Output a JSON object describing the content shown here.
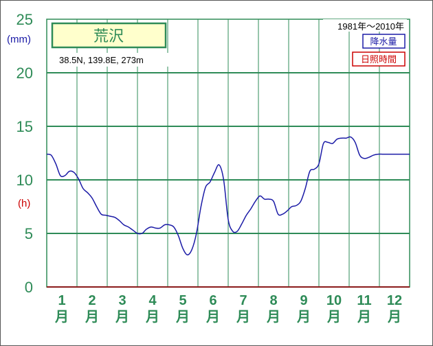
{
  "chart_data": {
    "type": "line",
    "station": "荒沢",
    "location_text": "38.5N,  139.8E,  273m",
    "period_text": "1981年〜2010年",
    "legend": {
      "precip": "降水量",
      "sunshine": "日照時間"
    },
    "units": {
      "left_top": "(mm)",
      "left_mid": "(h)"
    },
    "y_tick_labels": [
      "0",
      "5",
      "10",
      "15",
      "20",
      "25"
    ],
    "ylim": [
      0,
      25
    ],
    "x_ticks": [
      {
        "num": "1",
        "unit": "月"
      },
      {
        "num": "2",
        "unit": "月"
      },
      {
        "num": "3",
        "unit": "月"
      },
      {
        "num": "4",
        "unit": "月"
      },
      {
        "num": "5",
        "unit": "月"
      },
      {
        "num": "6",
        "unit": "月"
      },
      {
        "num": "7",
        "unit": "月"
      },
      {
        "num": "8",
        "unit": "月"
      },
      {
        "num": "9",
        "unit": "月"
      },
      {
        "num": "10",
        "unit": "月"
      },
      {
        "num": "11",
        "unit": "月"
      },
      {
        "num": "12",
        "unit": "月"
      }
    ],
    "xlim": [
      0.5,
      12.5
    ],
    "series": [
      {
        "color": "#1a1aa6",
        "x": [
          0.5,
          0.65,
          0.8,
          0.95,
          1.1,
          1.25,
          1.4,
          1.55,
          1.7,
          1.85,
          2.0,
          2.15,
          2.3,
          2.45,
          2.6,
          2.75,
          2.9,
          3.05,
          3.2,
          3.35,
          3.5,
          3.65,
          3.8,
          3.95,
          4.1,
          4.25,
          4.4,
          4.55,
          4.7,
          4.85,
          5.0,
          5.15,
          5.3,
          5.45,
          5.6,
          5.75,
          5.9,
          6.05,
          6.2,
          6.35,
          6.5,
          6.65,
          6.8,
          6.95,
          7.1,
          7.25,
          7.4,
          7.55,
          7.7,
          7.85,
          8.0,
          8.15,
          8.3,
          8.45,
          8.6,
          8.75,
          8.9,
          9.05,
          9.2,
          9.35,
          9.5,
          9.65,
          9.8,
          9.95,
          10.1,
          10.25,
          10.4,
          10.55,
          10.7,
          10.85,
          11.0,
          11.15,
          11.3,
          11.45,
          11.6,
          11.75,
          11.9,
          12.05,
          12.2,
          12.35,
          12.5
        ],
        "values": [
          12.4,
          12.3,
          11.5,
          10.4,
          10.4,
          10.8,
          10.7,
          10.1,
          9.2,
          8.8,
          8.3,
          7.5,
          6.8,
          6.7,
          6.6,
          6.5,
          6.2,
          5.8,
          5.6,
          5.3,
          5.0,
          5.0,
          5.4,
          5.6,
          5.5,
          5.5,
          5.8,
          5.8,
          5.6,
          4.8,
          3.6,
          3.0,
          3.5,
          5.0,
          7.5,
          9.3,
          9.8,
          10.7,
          11.4,
          10.0,
          6.3,
          5.2,
          5.2,
          5.9,
          6.7,
          7.3,
          8.0,
          8.5,
          8.2,
          8.2,
          8.0,
          6.8,
          6.8,
          7.1,
          7.5,
          7.6,
          8.0,
          9.2,
          10.8,
          11.0,
          11.5,
          13.4,
          13.5,
          13.4,
          13.8,
          13.9,
          13.9,
          14.0,
          13.5,
          12.3,
          12.0,
          12.1,
          12.3,
          12.4,
          12.4,
          12.4,
          12.4,
          12.4,
          12.4,
          12.4,
          12.4
        ]
      }
    ]
  }
}
